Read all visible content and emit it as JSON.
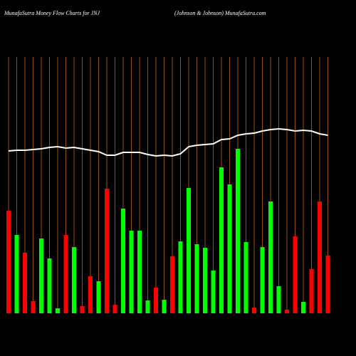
{
  "chart_data": {
    "type": "bar",
    "title": "MunafaSutra  Money Flow  Charts for JNJ",
    "subtitle": "(Johnson  & Johnson) MunafaSutra.com",
    "categories": [
      null,
      null,
      null,
      null,
      null,
      null,
      null,
      null,
      null,
      null,
      null,
      null,
      null,
      null,
      null,
      null,
      null,
      null,
      null,
      null,
      null,
      null,
      null,
      null,
      null,
      null,
      null,
      null,
      null,
      null,
      null,
      null,
      null,
      null,
      null,
      null,
      null,
      null,
      null,
      null
    ],
    "series": [
      {
        "name": null,
        "values": [
          144,
          110,
          85,
          17,
          105,
          77,
          7,
          110,
          93,
          10,
          52,
          45,
          175,
          12,
          147,
          116,
          116,
          18,
          36,
          19,
          80,
          101,
          176,
          97,
          92,
          60,
          205,
          181,
          231,
          100,
          8,
          93,
          157,
          38,
          5,
          108,
          16,
          62,
          157,
          81
        ],
        "colors": [
          "#ff0000",
          "#00ff00",
          "#ff0000",
          "#ff0000",
          "#00ff00",
          "#00ff00",
          "#00ff00",
          "#ff0000",
          "#00ff00",
          "#ff0000",
          "#ff0000",
          "#00ff00",
          "#ff0000",
          "#ff0000",
          "#00ff00",
          "#00ff00",
          "#00ff00",
          "#00ff00",
          "#ff0000",
          "#00ff00",
          "#ff0000",
          "#00ff00",
          "#00ff00",
          "#00ff00",
          "#00ff00",
          "#00ff00",
          "#00ff00",
          "#00ff00",
          "#00ff00",
          "#00ff00",
          "#ff0000",
          "#00ff00",
          "#00ff00",
          "#00ff00",
          "#ff0000",
          "#ff0000",
          "#00ff00",
          "#ff0000",
          "#ff0000",
          "#ff0000"
        ]
      },
      {
        "name": null,
        "type": "line",
        "color": "#ffffff",
        "values": [
          228,
          229,
          229,
          230,
          231,
          233,
          234,
          232,
          233,
          231,
          229,
          227,
          222,
          222,
          226,
          226,
          226,
          223,
          221,
          222,
          221,
          224,
          234,
          236,
          237,
          238,
          244,
          245,
          250,
          252,
          253,
          256,
          258,
          259,
          258,
          256,
          257,
          256,
          252,
          250
        ]
      }
    ],
    "ylim": [
      0,
      360
    ],
    "grid_color": "#b8651b"
  }
}
